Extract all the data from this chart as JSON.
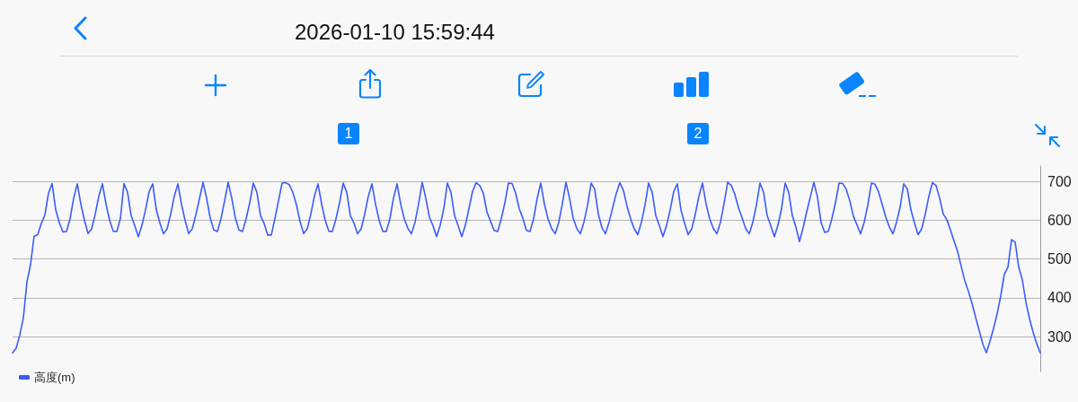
{
  "chart_data": {
    "type": "line",
    "title": "2026-01-10 15:59:44",
    "annotations": [
      "1",
      "2"
    ],
    "categories": [
      null,
      null,
      null,
      null,
      null,
      null,
      null,
      null,
      null,
      null,
      null,
      null,
      null,
      null,
      null,
      null,
      null,
      null,
      null,
      null,
      null,
      null,
      null,
      null,
      null,
      null,
      null,
      null,
      null,
      null,
      null,
      null,
      null,
      null,
      null,
      null,
      null,
      null,
      null,
      null,
      null,
      null,
      null,
      null,
      null,
      null,
      null,
      null,
      null,
      null,
      null,
      null,
      null,
      null,
      null,
      null,
      null,
      null,
      null,
      null,
      null,
      null,
      null,
      null,
      null,
      null,
      null,
      null,
      null,
      null,
      null,
      null,
      null,
      null,
      null,
      null,
      null,
      null,
      null,
      null,
      null,
      null,
      null,
      null,
      null,
      null,
      null,
      null,
      null,
      null,
      null,
      null,
      null,
      null,
      null,
      null,
      null,
      null,
      null,
      null,
      null,
      null,
      null,
      null,
      null,
      null,
      null,
      null,
      null,
      null,
      null,
      null,
      null,
      null,
      null,
      null,
      null,
      null,
      null,
      null,
      null,
      null,
      null,
      null,
      null,
      null,
      null,
      null,
      null,
      null,
      null,
      null,
      null,
      null,
      null,
      null,
      null,
      null,
      null,
      null,
      null,
      null,
      null,
      null,
      null,
      null,
      null,
      null,
      null,
      null,
      null,
      null,
      null,
      null,
      null,
      null,
      null,
      null,
      null,
      null,
      null,
      null,
      null,
      null,
      null,
      null,
      null,
      null,
      null,
      null,
      null,
      null,
      null,
      null,
      null,
      null,
      null,
      null,
      null,
      null,
      null,
      null,
      null,
      null,
      null,
      null,
      null,
      null,
      null,
      null,
      null,
      null,
      null,
      null,
      null,
      null,
      null,
      null,
      null,
      null,
      null,
      null,
      null,
      null,
      null,
      null,
      null,
      null,
      null,
      null,
      null,
      null,
      null,
      null,
      null,
      null,
      null,
      null,
      null,
      null,
      null,
      null,
      null,
      null,
      null,
      null,
      null,
      null,
      null,
      null,
      null,
      null,
      null,
      null,
      null,
      null,
      null,
      null,
      null,
      null,
      null,
      null,
      null,
      null,
      null,
      null,
      null,
      null,
      null,
      null,
      null,
      null,
      null,
      null,
      null,
      null,
      null,
      null,
      null,
      null,
      null,
      null,
      null,
      null,
      null,
      null,
      null,
      null,
      null,
      null,
      null,
      null,
      null,
      null,
      null,
      null,
      null,
      null,
      null,
      null,
      null,
      null,
      null,
      null,
      null,
      null,
      null
    ],
    "series": [
      {
        "name": "高度(m)",
        "color": "#3b5bfd",
        "values": [
          258,
          270,
          304,
          348,
          441,
          486,
          559,
          563,
          592,
          614,
          670,
          695,
          627,
          594,
          570,
          571,
          604,
          657,
          694,
          642,
          600,
          566,
          578,
          616,
          662,
          694,
          642,
          600,
          572,
          571,
          604,
          695,
          672,
          612,
          586,
          558,
          587,
          627,
          674,
          694,
          627,
          593,
          565,
          578,
          616,
          662,
          694,
          642,
          600,
          566,
          578,
          614,
          655,
          698,
          657,
          606,
          575,
          571,
          604,
          650,
          698,
          657,
          606,
          575,
          571,
          604,
          645,
          696,
          672,
          612,
          592,
          562,
          562,
          604,
          650,
          696,
          697,
          692,
          672,
          640,
          597,
          566,
          578,
          616,
          662,
          694,
          642,
          600,
          572,
          571,
          604,
          645,
          696,
          672,
          612,
          593,
          565,
          578,
          616,
          662,
          694,
          642,
          600,
          572,
          571,
          604,
          657,
          694,
          642,
          604,
          579,
          565,
          595,
          643,
          698,
          657,
          608,
          586,
          558,
          587,
          630,
          696,
          672,
          612,
          586,
          558,
          587,
          630,
          674,
          697,
          690,
          670,
          622,
          598,
          574,
          571,
          604,
          645,
          696,
          695,
          670,
          630,
          605,
          574,
          571,
          604,
          657,
          696,
          642,
          604,
          579,
          565,
          595,
          643,
          698,
          657,
          606,
          579,
          565,
          595,
          638,
          696,
          680,
          617,
          581,
          565,
          595,
          632,
          669,
          697,
          677,
          636,
          604,
          578,
          563,
          595,
          639,
          696,
          672,
          612,
          586,
          558,
          587,
          627,
          674,
          694,
          627,
          593,
          563,
          578,
          616,
          662,
          696,
          642,
          604,
          579,
          565,
          595,
          643,
          698,
          690,
          667,
          633,
          607,
          579,
          565,
          595,
          639,
          696,
          672,
          612,
          586,
          558,
          587,
          630,
          696,
          672,
          612,
          582,
          545,
          581,
          622,
          660,
          698,
          660,
          594,
          569,
          571,
          604,
          645,
          696,
          695,
          680,
          650,
          610,
          588,
          565,
          595,
          639,
          696,
          693,
          673,
          641,
          608,
          583,
          565,
          595,
          634,
          694,
          681,
          627,
          593,
          563,
          578,
          616,
          662,
          697,
          690,
          657,
          616,
          602,
          575,
          547,
          519,
          481,
          444,
          417,
          386,
          350,
          316,
          281,
          258,
          288,
          321,
          359,
          405,
          461,
          479,
          550,
          544,
          479,
          447,
          389,
          346,
          312,
          282,
          258
        ]
      }
    ],
    "ylim": [
      210,
      740
    ],
    "yticks": [
      300,
      400,
      500,
      600,
      700
    ],
    "grid": "y",
    "legend": "bottom left",
    "tick_labels": "y",
    "marker": "none"
  }
}
